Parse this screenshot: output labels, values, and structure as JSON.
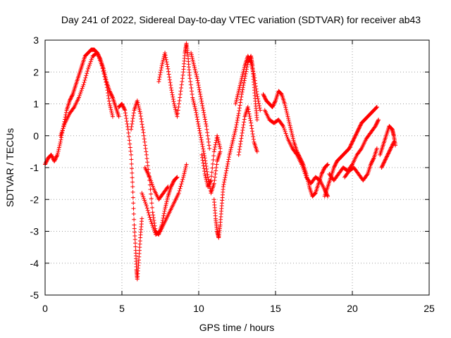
{
  "chart_data": {
    "type": "scatter",
    "title": "Day 241 of 2022, Sidereal Day-to-day VTEC variation (SDTVAR) for receiver ab43",
    "xlabel": "GPS time / hours",
    "ylabel": "SDTVAR / TECUs",
    "xlim": [
      0,
      25
    ],
    "ylim": [
      -5,
      3
    ],
    "xticks": [
      "0",
      "5",
      "10",
      "15",
      "20",
      "25"
    ],
    "yticks": [
      "-5",
      "-4",
      "-3",
      "-2",
      "-1",
      "0",
      "1",
      "2",
      "3"
    ],
    "grid": true,
    "marker": "+",
    "series_color": "#ff0000",
    "series": [
      {
        "name": "ab43",
        "tracks": [
          [
            [
              0.0,
              -0.9
            ],
            [
              0.2,
              -0.7
            ],
            [
              0.4,
              -0.6
            ],
            [
              0.6,
              -0.8
            ],
            [
              0.8,
              -0.6
            ],
            [
              1.0,
              -0.2
            ],
            [
              1.2,
              0.3
            ],
            [
              1.4,
              0.8
            ],
            [
              1.6,
              1.1
            ],
            [
              1.8,
              1.3
            ],
            [
              2.0,
              1.6
            ],
            [
              2.2,
              1.9
            ],
            [
              2.4,
              2.2
            ],
            [
              2.6,
              2.5
            ],
            [
              2.8,
              2.6
            ],
            [
              3.0,
              2.7
            ],
            [
              3.2,
              2.7
            ],
            [
              3.4,
              2.6
            ],
            [
              3.6,
              2.4
            ],
            [
              3.8,
              2.1
            ],
            [
              4.0,
              1.7
            ],
            [
              4.2,
              1.4
            ],
            [
              4.4,
              1.2
            ],
            [
              4.6,
              0.9
            ],
            [
              4.8,
              0.6
            ]
          ],
          [
            [
              1.0,
              0.0
            ],
            [
              1.3,
              0.4
            ],
            [
              1.6,
              0.7
            ],
            [
              1.9,
              0.9
            ],
            [
              2.2,
              1.2
            ],
            [
              2.5,
              1.6
            ],
            [
              2.8,
              2.1
            ],
            [
              3.1,
              2.5
            ],
            [
              3.4,
              2.6
            ],
            [
              3.7,
              2.2
            ],
            [
              4.0,
              1.6
            ],
            [
              4.2,
              1.0
            ],
            [
              4.4,
              0.6
            ]
          ],
          [
            [
              4.8,
              0.9
            ],
            [
              5.0,
              1.0
            ],
            [
              5.2,
              0.8
            ],
            [
              5.4,
              0.2
            ],
            [
              5.6,
              -0.6
            ],
            [
              5.7,
              -1.6
            ],
            [
              5.8,
              -2.8
            ],
            [
              5.9,
              -3.6
            ],
            [
              5.95,
              -4.2
            ],
            [
              6.0,
              -4.5
            ],
            [
              6.1,
              -3.9
            ],
            [
              6.2,
              -3.2
            ],
            [
              6.3,
              -2.6
            ]
          ],
          [
            [
              5.6,
              0.2
            ],
            [
              5.8,
              0.8
            ],
            [
              6.0,
              1.1
            ],
            [
              6.2,
              0.7
            ],
            [
              6.4,
              0.1
            ],
            [
              6.6,
              -0.6
            ],
            [
              6.8,
              -1.4
            ],
            [
              7.0,
              -2.4
            ],
            [
              7.2,
              -3.0
            ],
            [
              7.4,
              -3.1
            ],
            [
              7.6,
              -2.8
            ],
            [
              7.8,
              -2.3
            ],
            [
              8.0,
              -1.9
            ],
            [
              8.2,
              -1.6
            ],
            [
              8.4,
              -1.4
            ],
            [
              8.6,
              -1.3
            ]
          ],
          [
            [
              6.3,
              -1.8
            ],
            [
              6.6,
              -2.2
            ],
            [
              6.9,
              -2.7
            ],
            [
              7.2,
              -3.1
            ],
            [
              7.5,
              -3.0
            ],
            [
              7.8,
              -2.7
            ],
            [
              8.1,
              -2.4
            ],
            [
              8.4,
              -2.1
            ],
            [
              8.7,
              -1.8
            ],
            [
              9.0,
              -1.3
            ],
            [
              9.2,
              -0.9
            ]
          ],
          [
            [
              6.5,
              -1.0
            ],
            [
              6.8,
              -1.3
            ],
            [
              7.1,
              -1.7
            ],
            [
              7.4,
              -2.0
            ],
            [
              7.7,
              -1.8
            ],
            [
              8.0,
              -1.6
            ]
          ],
          [
            [
              7.4,
              1.7
            ],
            [
              7.6,
              2.2
            ],
            [
              7.8,
              2.6
            ],
            [
              8.0,
              2.1
            ],
            [
              8.2,
              1.5
            ],
            [
              8.4,
              1.0
            ],
            [
              8.6,
              0.6
            ],
            [
              8.8,
              1.3
            ],
            [
              9.0,
              2.0
            ],
            [
              9.1,
              2.6
            ],
            [
              9.2,
              2.9
            ],
            [
              9.3,
              2.5
            ],
            [
              9.4,
              1.9
            ],
            [
              9.6,
              1.2
            ],
            [
              9.8,
              0.8
            ],
            [
              10.0,
              0.3
            ],
            [
              10.2,
              -0.2
            ],
            [
              10.4,
              -0.7
            ],
            [
              10.6,
              -1.3
            ],
            [
              10.8,
              -1.8
            ],
            [
              11.0,
              -1.5
            ],
            [
              11.2,
              -0.8
            ],
            [
              11.4,
              -0.5
            ]
          ],
          [
            [
              9.5,
              2.6
            ],
            [
              9.7,
              2.2
            ],
            [
              9.9,
              1.8
            ],
            [
              10.1,
              1.3
            ],
            [
              10.3,
              0.8
            ],
            [
              10.5,
              0.3
            ],
            [
              10.7,
              -0.4
            ]
          ],
          [
            [
              10.2,
              -0.6
            ],
            [
              10.4,
              -1.2
            ],
            [
              10.6,
              -1.6
            ],
            [
              10.8,
              -1.4
            ],
            [
              11.0,
              -0.5
            ],
            [
              11.2,
              0.0
            ],
            [
              11.4,
              -0.4
            ]
          ],
          [
            [
              11.0,
              -2.0
            ],
            [
              11.1,
              -2.6
            ],
            [
              11.2,
              -3.0
            ],
            [
              11.3,
              -3.2
            ],
            [
              11.4,
              -2.8
            ],
            [
              11.5,
              -2.2
            ],
            [
              11.6,
              -1.6
            ],
            [
              11.8,
              -1.1
            ],
            [
              12.0,
              -0.6
            ],
            [
              12.2,
              -0.2
            ],
            [
              12.4,
              0.2
            ],
            [
              12.6,
              0.7
            ],
            [
              12.8,
              1.3
            ],
            [
              13.0,
              1.8
            ],
            [
              13.2,
              2.3
            ],
            [
              13.4,
              2.5
            ],
            [
              13.5,
              2.2
            ],
            [
              13.6,
              1.6
            ],
            [
              13.7,
              1.0
            ],
            [
              13.8,
              0.5
            ]
          ],
          [
            [
              12.4,
              1.0
            ],
            [
              12.6,
              1.4
            ],
            [
              12.8,
              1.8
            ],
            [
              13.0,
              2.2
            ],
            [
              13.2,
              2.5
            ],
            [
              13.4,
              2.3
            ],
            [
              13.6,
              1.9
            ],
            [
              13.8,
              1.3
            ],
            [
              14.0,
              0.8
            ]
          ],
          [
            [
              12.6,
              -0.6
            ],
            [
              12.8,
              0.0
            ],
            [
              13.0,
              0.6
            ],
            [
              13.2,
              0.9
            ],
            [
              13.4,
              0.4
            ],
            [
              13.6,
              -0.2
            ],
            [
              13.8,
              -0.5
            ]
          ],
          [
            [
              14.2,
              1.3
            ],
            [
              14.4,
              1.1
            ],
            [
              14.6,
              1.0
            ],
            [
              14.8,
              0.9
            ],
            [
              15.0,
              1.1
            ],
            [
              15.2,
              1.4
            ],
            [
              15.4,
              1.3
            ],
            [
              15.6,
              1.0
            ],
            [
              15.8,
              0.6
            ],
            [
              16.0,
              0.2
            ],
            [
              16.2,
              -0.2
            ],
            [
              16.4,
              -0.5
            ],
            [
              16.6,
              -0.7
            ],
            [
              16.8,
              -0.9
            ],
            [
              17.0,
              -1.2
            ],
            [
              17.2,
              -1.6
            ],
            [
              17.4,
              -1.9
            ],
            [
              17.6,
              -1.8
            ],
            [
              17.8,
              -1.5
            ],
            [
              18.0,
              -1.2
            ],
            [
              18.2,
              -1.0
            ],
            [
              18.4,
              -0.9
            ]
          ],
          [
            [
              14.3,
              0.8
            ],
            [
              14.6,
              0.5
            ],
            [
              14.9,
              0.4
            ],
            [
              15.2,
              0.5
            ],
            [
              15.5,
              0.3
            ],
            [
              15.8,
              -0.1
            ],
            [
              16.1,
              -0.4
            ],
            [
              16.4,
              -0.6
            ],
            [
              16.7,
              -0.9
            ],
            [
              17.0,
              -1.3
            ],
            [
              17.3,
              -1.5
            ],
            [
              17.6,
              -1.3
            ],
            [
              17.9,
              -1.4
            ],
            [
              18.2,
              -1.7
            ],
            [
              18.4,
              -1.9
            ]
          ],
          [
            [
              18.2,
              -1.9
            ],
            [
              18.4,
              -1.6
            ],
            [
              18.6,
              -1.3
            ],
            [
              18.8,
              -1.0
            ],
            [
              19.0,
              -0.8
            ],
            [
              19.2,
              -0.7
            ],
            [
              19.4,
              -0.6
            ],
            [
              19.6,
              -0.5
            ],
            [
              19.8,
              -0.4
            ],
            [
              20.0,
              -0.2
            ],
            [
              20.2,
              0.0
            ],
            [
              20.4,
              0.2
            ],
            [
              20.6,
              0.4
            ],
            [
              20.8,
              0.5
            ],
            [
              21.0,
              0.6
            ],
            [
              21.2,
              0.7
            ],
            [
              21.4,
              0.8
            ],
            [
              21.6,
              0.9
            ]
          ],
          [
            [
              18.5,
              -1.2
            ],
            [
              18.8,
              -1.4
            ],
            [
              19.1,
              -1.2
            ],
            [
              19.4,
              -1.0
            ],
            [
              19.7,
              -1.1
            ],
            [
              20.0,
              -0.9
            ],
            [
              20.3,
              -0.6
            ],
            [
              20.6,
              -0.4
            ],
            [
              20.9,
              -0.1
            ],
            [
              21.2,
              0.1
            ],
            [
              21.5,
              0.3
            ],
            [
              21.7,
              0.5
            ]
          ],
          [
            [
              19.5,
              -1.3
            ],
            [
              19.8,
              -1.1
            ],
            [
              20.1,
              -1.0
            ],
            [
              20.4,
              -1.2
            ],
            [
              20.7,
              -1.4
            ],
            [
              21.0,
              -1.2
            ],
            [
              21.2,
              -0.9
            ],
            [
              21.4,
              -0.7
            ],
            [
              21.6,
              -0.4
            ]
          ],
          [
            [
              21.8,
              -0.6
            ],
            [
              22.0,
              -0.3
            ],
            [
              22.2,
              0.0
            ],
            [
              22.4,
              0.3
            ],
            [
              22.6,
              0.2
            ],
            [
              22.7,
              0.0
            ],
            [
              22.8,
              -0.3
            ]
          ],
          [
            [
              21.9,
              -1.0
            ],
            [
              22.1,
              -0.8
            ],
            [
              22.3,
              -0.6
            ],
            [
              22.5,
              -0.4
            ],
            [
              22.7,
              -0.2
            ]
          ]
        ]
      }
    ]
  }
}
